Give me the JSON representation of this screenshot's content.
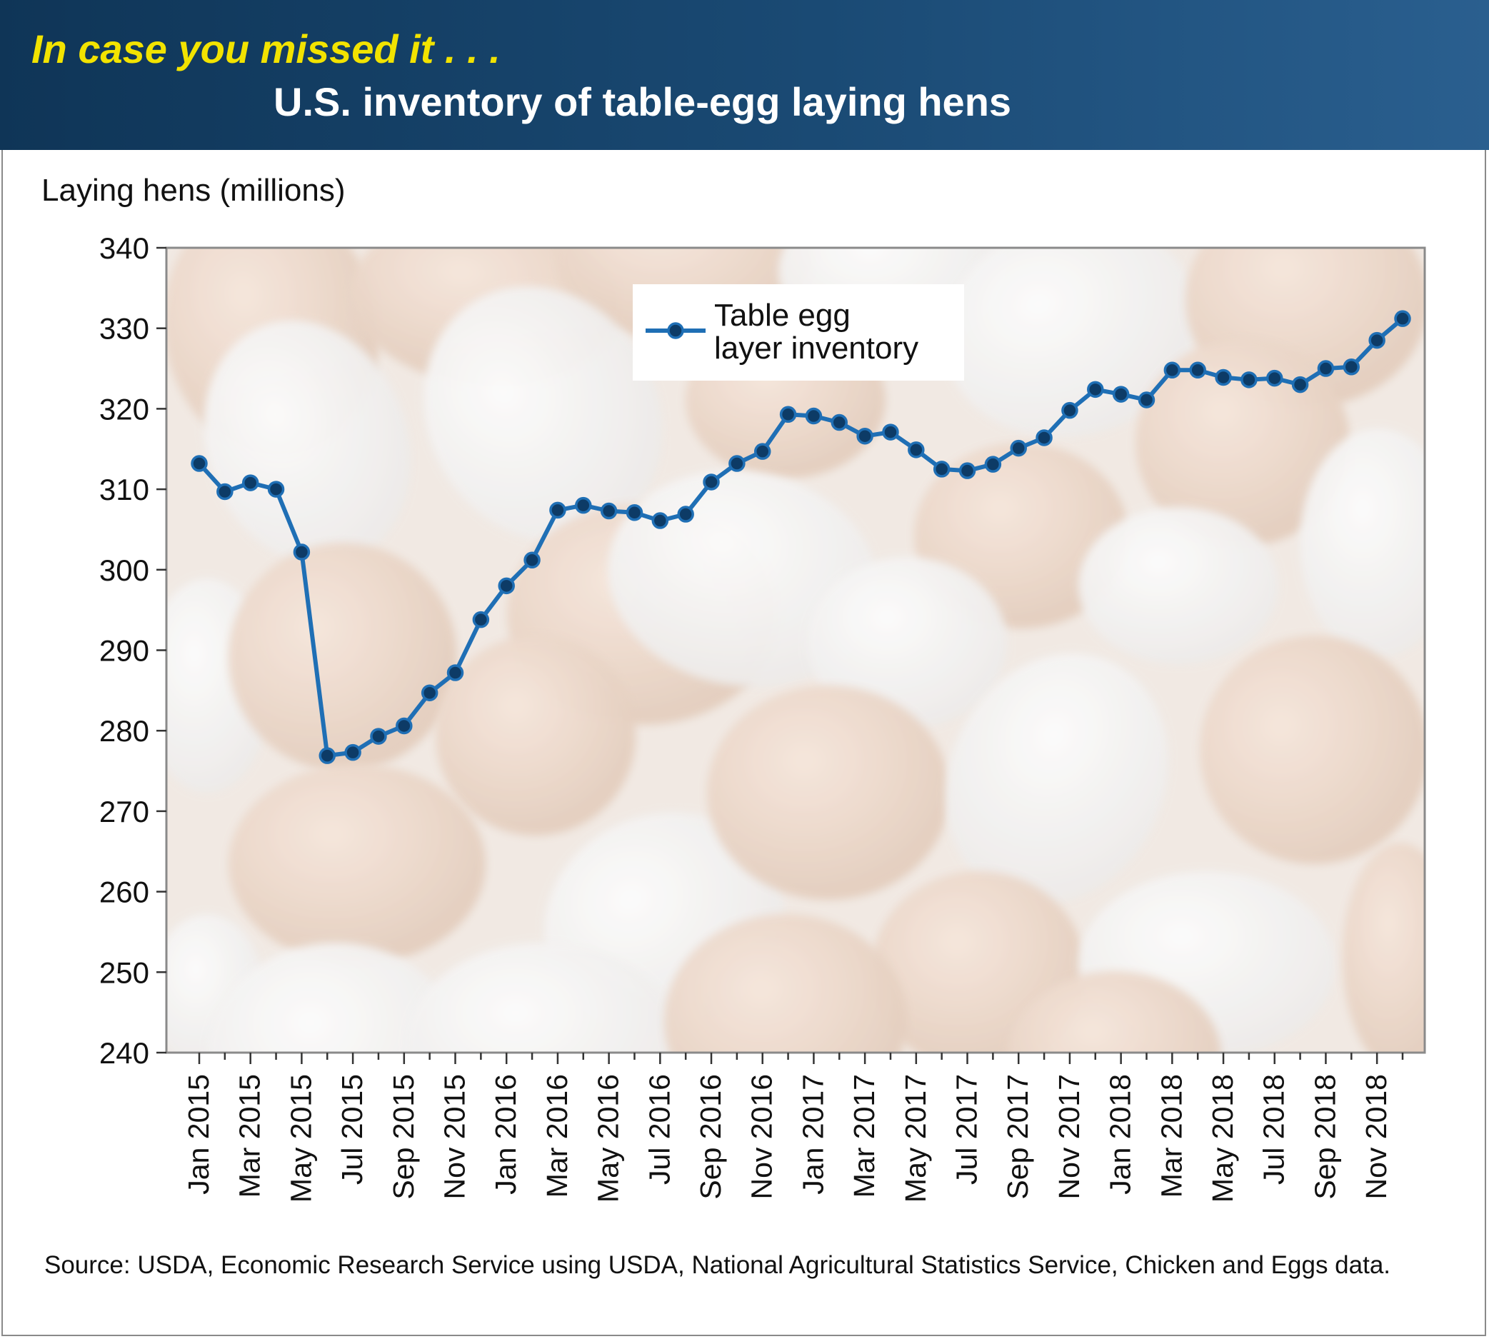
{
  "header": {
    "kicker": "In case you missed it . . .",
    "title": "U.S. inventory of table-egg laying hens"
  },
  "source": "Source: USDA, Economic Research Service using USDA, National Agricultural Statistics Service, Chicken and Eggs data.",
  "colors": {
    "series": "#1f6fb5",
    "marker_fill": "#0d3b66",
    "banner": "#1a4a74",
    "kicker": "#f2e300"
  },
  "chart_data": {
    "type": "line",
    "title": "U.S. inventory of table-egg laying hens",
    "ylabel": "Laying hens (millions)",
    "xlabel": "",
    "ylim": [
      240,
      340
    ],
    "yticks": [
      240,
      250,
      260,
      270,
      280,
      290,
      300,
      310,
      320,
      330,
      340
    ],
    "grid": false,
    "legend_position": "top-center",
    "x": [
      "Jan 2015",
      "Feb 2015",
      "Mar 2015",
      "Apr 2015",
      "May 2015",
      "Jun 2015",
      "Jul 2015",
      "Aug 2015",
      "Sep 2015",
      "Oct 2015",
      "Nov 2015",
      "Dec 2015",
      "Jan 2016",
      "Feb 2016",
      "Mar 2016",
      "Apr 2016",
      "May 2016",
      "Jun 2016",
      "Jul 2016",
      "Aug 2016",
      "Sep 2016",
      "Oct 2016",
      "Nov 2016",
      "Dec 2016",
      "Jan 2017",
      "Feb 2017",
      "Mar 2017",
      "Apr 2017",
      "May 2017",
      "Jun 2017",
      "Jul 2017",
      "Aug 2017",
      "Sep 2017",
      "Oct 2017",
      "Nov 2017",
      "Dec 2017",
      "Jan 2018",
      "Feb 2018",
      "Mar 2018",
      "Apr 2018",
      "May 2018",
      "Jun 2018",
      "Jul 2018",
      "Aug 2018",
      "Sep 2018",
      "Oct 2018",
      "Nov 2018",
      "Dec 2018"
    ],
    "xtick_labels": [
      "Jan 2015",
      "Mar 2015",
      "May 2015",
      "Jul 2015",
      "Sep 2015",
      "Nov 2015",
      "Jan 2016",
      "Mar 2016",
      "May 2016",
      "Jul 2016",
      "Sep 2016",
      "Nov 2016",
      "Jan 2017",
      "Mar 2017",
      "May 2017",
      "Jul 2017",
      "Sep 2017",
      "Nov 2017",
      "Jan 2018",
      "Mar 2018",
      "May 2018",
      "Jul 2018",
      "Sep 2018",
      "Nov 2018"
    ],
    "series": [
      {
        "name": "Table egg layer inventory",
        "values": [
          313.2,
          309.7,
          310.8,
          310.0,
          302.2,
          276.9,
          277.3,
          279.3,
          280.6,
          284.7,
          287.2,
          293.8,
          298.0,
          301.2,
          307.4,
          308.0,
          307.3,
          307.1,
          306.1,
          306.9,
          310.9,
          313.2,
          314.7,
          319.3,
          319.1,
          318.3,
          316.6,
          317.1,
          314.9,
          312.5,
          312.3,
          313.1,
          315.1,
          316.4,
          319.8,
          322.4,
          321.8,
          321.1,
          324.8,
          324.8,
          323.9,
          323.6,
          323.8,
          323.0,
          325.0,
          325.2,
          328.5,
          331.2
        ]
      }
    ]
  }
}
